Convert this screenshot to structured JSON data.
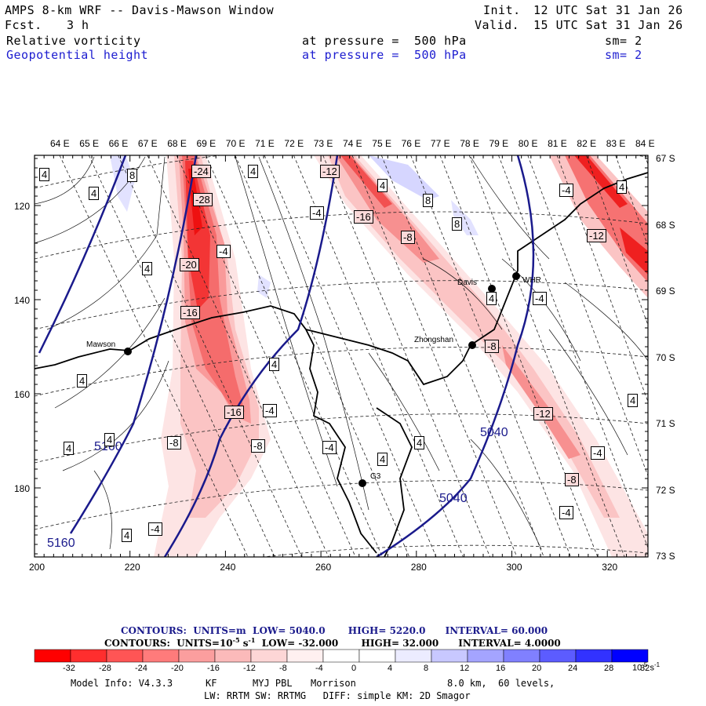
{
  "header": {
    "model": "AMPS 8-km WRF -- Davis-Mawson Window",
    "forecast_label": "Fcst.",
    "forecast_hours": "3 h",
    "init_label": "Init.",
    "init_time": "12 UTC Sat 31 Jan 26",
    "valid_label": "Valid.",
    "valid_time": "15 UTC Sat 31 Jan 26",
    "field1": "Relative vorticity",
    "field1_pressure": "at pressure =  500 hPa",
    "field1_sm": "sm= 2",
    "field2": "Geopotential height",
    "field2_pressure": "at pressure =  500 hPa",
    "field2_sm": "sm= 2"
  },
  "longitudes": [
    "64 E",
    "65 E",
    "66 E",
    "67 E",
    "68 E",
    "69 E",
    "70 E",
    "71 E",
    "72 E",
    "73 E",
    "74 E",
    "75 E",
    "76 E",
    "77 E",
    "78 E",
    "79 E",
    "80 E",
    "81 E",
    "82 E",
    "83 E",
    "84 E"
  ],
  "latitudes": [
    "67 S",
    "68 S",
    "69 S",
    "70 S",
    "71 S",
    "72 S",
    "73 S"
  ],
  "x_axis": [
    "200",
    "220",
    "240",
    "260",
    "280",
    "300",
    "320"
  ],
  "y_axis": [
    "120",
    "140",
    "160",
    "180"
  ],
  "stations": {
    "davis": "Davis",
    "whr": "WHR",
    "mawson": "Mawson",
    "zhongshan": "Zhongshan",
    "g3": "G3"
  },
  "height_labels": {
    "h1": "5160",
    "h2": "5160",
    "h3": "5040",
    "h4": "5040"
  },
  "vorticity_labels": {
    "a": "4",
    "b": "8",
    "c": "4",
    "d": "4",
    "e": "4",
    "f": "4",
    "g": "4",
    "h": "4",
    "i": "4",
    "j": "4",
    "k": "4",
    "l": "4",
    "m": "4",
    "n": "4",
    "o": "4",
    "p": "4",
    "q": "8",
    "r": "8",
    "n1": "-24",
    "n2": "-28",
    "n3": "-4",
    "n4": "-20",
    "n5": "-16",
    "n6": "-16",
    "n7": "-4",
    "n8": "-8",
    "n9": "-8",
    "n10": "-4",
    "n11": "-4",
    "n12": "-12",
    "n13": "-4",
    "n14": "-16",
    "n15": "-8",
    "n16": "-8",
    "n17": "-12",
    "n18": "-4",
    "n19": "-8",
    "n20": "-4",
    "n21": "-4",
    "n22": "-12",
    "n23": "-4",
    "n24": "-4",
    "n25": "4"
  },
  "contour_info": {
    "line1_contours": "CONTOURS:",
    "line1_units": "UNITS=m",
    "line1_low": "LOW=  5040.0",
    "line1_high": "HIGH=  5220.0",
    "line1_interval": "INTERVAL=    60.000",
    "line2_contours": "CONTOURS:",
    "line2_units": "UNITS=10",
    "line2_units_exp": "-5",
    "line2_units_s": "s",
    "line2_units_sexp": "-1",
    "line2_low": "LOW=  -32.000",
    "line2_high": "HIGH=   32.000",
    "line2_interval": "INTERVAL=    4.0000"
  },
  "colorbar": {
    "colors": [
      "#ff0000",
      "#ff2e2e",
      "#ff5555",
      "#ff7b7b",
      "#fb9e9e",
      "#fbbaba",
      "#fdd6d6",
      "#fff0f0",
      "#ffffff",
      "#ffffff",
      "#ececff",
      "#c8c8ff",
      "#a4a4ff",
      "#8080ff",
      "#5c5cff",
      "#3232ff",
      "#0000ff"
    ],
    "ticks": [
      "-32",
      "-28",
      "-24",
      "-20",
      "-16",
      "-12",
      "-8",
      "-4",
      "0",
      "4",
      "8",
      "12",
      "16",
      "20",
      "24",
      "28",
      "32"
    ],
    "unit": "10",
    "unit_exp": "-5",
    "unit_s": "s",
    "unit_sexp": "-1"
  },
  "footer": {
    "model_info": "Model Info: V4.3.3",
    "cu": "KF",
    "pbl": "MYJ PBL",
    "mp": "Morrison",
    "res": "8.0 km,  60 levels,",
    "line2": "LW: RRTM SW: RRTMG   DIFF: simple KM: 2D Smagor"
  }
}
